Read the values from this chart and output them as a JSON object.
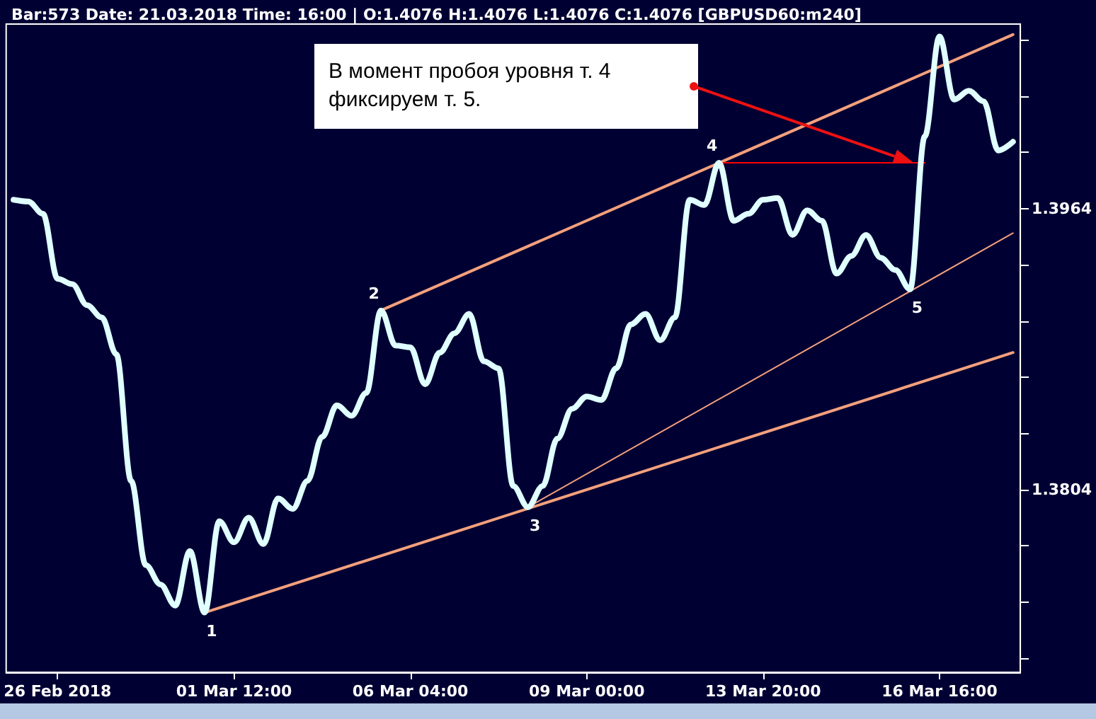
{
  "chart_data": {
    "type": "line",
    "title": "Bar:573 Date: 21.03.2018 Time: 16:00 | O:1.4076 H:1.4076 L:1.4076 C:1.4076 [GBPUSD60:m240]",
    "categories": [
      null,
      null,
      null,
      "26 Feb 2018",
      null,
      null,
      null,
      null,
      null,
      null,
      null,
      null,
      null,
      null,
      null,
      "01 Mar 12:00",
      null,
      null,
      null,
      null,
      null,
      null,
      null,
      null,
      null,
      null,
      null,
      "06 Mar 04:00",
      null,
      null,
      null,
      null,
      null,
      null,
      null,
      null,
      null,
      null,
      null,
      "09 Mar 00:00",
      null,
      null,
      null,
      null,
      null,
      null,
      null,
      null,
      null,
      null,
      null,
      "13 Mar 20:00",
      null,
      null,
      null,
      null,
      null,
      null,
      null,
      null,
      null,
      null,
      null,
      "16 Mar 16:00",
      null,
      null,
      null,
      null,
      null
    ],
    "ylim": [
      1.37,
      1.4069
    ],
    "yticks": [
      {
        "value": 1.3708,
        "label": null
      },
      {
        "value": 1.374,
        "label": null
      },
      {
        "value": 1.3772,
        "label": null
      },
      1.3804,
      {
        "value": 1.3836,
        "label": null
      },
      {
        "value": 1.3868,
        "label": null
      },
      {
        "value": 1.39,
        "label": null
      },
      {
        "value": 1.3932,
        "label": null
      },
      1.3964,
      {
        "value": 1.3996,
        "label": null
      },
      {
        "value": 1.4028,
        "label": null
      },
      {
        "value": 1.406,
        "label": null
      }
    ],
    "grid": false,
    "marker": "none",
    "line_style": "solid",
    "series": [
      {
        "color": "#e0ffff",
        "values": [
          1.3969,
          1.3968,
          1.3961,
          1.3924,
          1.3921,
          1.3909,
          1.3902,
          1.3881,
          1.3809,
          1.3761,
          1.375,
          1.3738,
          1.3769,
          1.3734,
          1.3786,
          1.3774,
          1.3788,
          1.3773,
          1.3799,
          1.3793,
          1.3809,
          1.3834,
          1.3852,
          1.3846,
          1.3859,
          1.3906,
          1.3886,
          1.3885,
          1.3864,
          1.3882,
          1.3893,
          1.3904,
          1.3877,
          1.3873,
          1.3806,
          1.3794,
          1.3806,
          1.3833,
          1.385,
          1.3857,
          1.3855,
          1.3873,
          1.3898,
          1.3904,
          1.3889,
          1.3902,
          1.3969,
          1.3966,
          1.399,
          1.3957,
          1.3961,
          1.3969,
          1.397,
          1.3949,
          1.3963,
          1.3957,
          1.3927,
          1.3937,
          1.3949,
          1.3936,
          1.3929,
          1.3918,
          1.4005,
          1.4062,
          1.4026,
          1.4031,
          1.4025,
          1.3997,
          1.4002
        ]
      },
      {
        "color": "#f4a07c",
        "values": [
          null,
          null,
          null,
          null,
          null,
          null,
          null,
          null,
          null,
          null,
          null,
          null,
          null,
          null,
          null,
          null,
          null,
          null,
          null,
          null,
          null,
          null,
          null,
          null,
          null,
          1.3906,
          null,
          null,
          null,
          null,
          null,
          null,
          null,
          null,
          null,
          null,
          null,
          null,
          null,
          null,
          null,
          null,
          null,
          null,
          null,
          null,
          null,
          null,
          null,
          null,
          null,
          null,
          null,
          null,
          null,
          null,
          null,
          null,
          null,
          null,
          null,
          null,
          null,
          null,
          null,
          null,
          null,
          null,
          1.4063
        ]
      },
      {
        "color": "#f4a07c",
        "values": [
          null,
          null,
          null,
          null,
          null,
          null,
          null,
          null,
          null,
          null,
          null,
          null,
          null,
          1.3734,
          null,
          null,
          null,
          null,
          null,
          null,
          null,
          null,
          null,
          null,
          null,
          null,
          null,
          null,
          null,
          null,
          null,
          null,
          null,
          null,
          null,
          null,
          null,
          null,
          null,
          null,
          null,
          null,
          null,
          null,
          null,
          null,
          null,
          null,
          null,
          null,
          null,
          null,
          null,
          null,
          null,
          null,
          null,
          null,
          null,
          null,
          null,
          null,
          null,
          null,
          null,
          null,
          null,
          null,
          1.3882
        ]
      },
      {
        "color": "#f4a07c",
        "values": [
          null,
          null,
          null,
          null,
          null,
          null,
          null,
          null,
          null,
          null,
          null,
          null,
          null,
          null,
          null,
          null,
          null,
          null,
          null,
          null,
          null,
          null,
          null,
          null,
          null,
          null,
          null,
          null,
          null,
          null,
          null,
          null,
          null,
          null,
          null,
          1.3794,
          null,
          null,
          null,
          null,
          null,
          null,
          null,
          null,
          null,
          null,
          null,
          null,
          null,
          null,
          null,
          null,
          null,
          null,
          null,
          null,
          null,
          null,
          null,
          null,
          null,
          null,
          null,
          null,
          null,
          null,
          null,
          null,
          1.395
        ]
      },
      {
        "color": "#ff0000",
        "values": [
          null,
          null,
          null,
          null,
          null,
          null,
          null,
          null,
          null,
          null,
          null,
          null,
          null,
          null,
          null,
          null,
          null,
          null,
          null,
          null,
          null,
          null,
          null,
          null,
          null,
          null,
          null,
          null,
          null,
          null,
          null,
          null,
          null,
          null,
          null,
          null,
          null,
          null,
          null,
          null,
          null,
          null,
          null,
          null,
          null,
          null,
          null,
          null,
          1.399,
          null,
          null,
          null,
          null,
          null,
          null,
          null,
          null,
          null,
          null,
          null,
          null,
          null,
          1.399,
          null,
          null,
          null,
          null,
          null,
          null
        ]
      }
    ],
    "annotations": [
      "В момент пробоя уровня т. 4\nфиксируем т. 5.",
      {
        "text": "1",
        "y": 1.3734
      },
      {
        "text": "2",
        "y": 1.3906
      },
      {
        "text": "3",
        "y": 1.3794
      },
      {
        "text": "4",
        "y": 1.399
      },
      {
        "text": "5",
        "y": 1.3918
      }
    ]
  }
}
